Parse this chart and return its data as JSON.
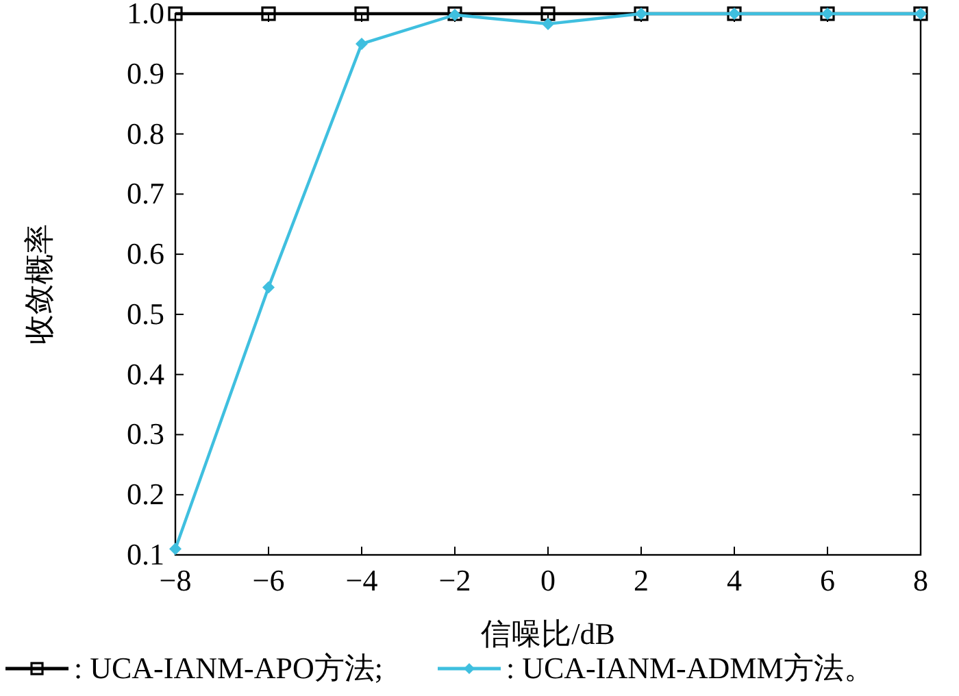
{
  "chart_data": {
    "type": "line",
    "xlabel": "信噪比/dB",
    "ylabel": "收敛概率",
    "x": [
      -8,
      -6,
      -4,
      -2,
      0,
      2,
      4,
      6,
      8
    ],
    "series": [
      {
        "name": ": UCA-IANM-APO方法;",
        "color": "#000000",
        "marker": "square",
        "values": [
          1,
          1,
          1,
          1,
          1,
          1,
          1,
          1,
          1
        ]
      },
      {
        "name": ": UCA-IANM-ADMM方法。",
        "color": "#3fbfdf",
        "marker": "diamond",
        "values": [
          0.11,
          0.545,
          0.95,
          0.998,
          0.983,
          1,
          1,
          1,
          1
        ]
      }
    ],
    "xlim": [
      -8,
      8
    ],
    "ylim": [
      0.1,
      1
    ],
    "xticks": [
      -8,
      -6,
      -4,
      -2,
      0,
      2,
      4,
      6,
      8
    ],
    "yticks": [
      0.1,
      0.2,
      0.3,
      0.4,
      0.5,
      0.6,
      0.7,
      0.8,
      0.9,
      {
        "value": 1,
        "label": "1.0"
      }
    ],
    "grid": false,
    "legend": "bottom",
    "line_style": "solid"
  }
}
